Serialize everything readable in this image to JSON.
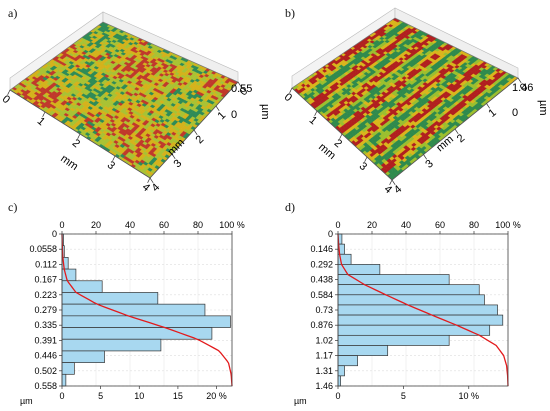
{
  "panels": {
    "a": {
      "label": "a)",
      "z_value": "0.55",
      "z_zero": "0",
      "z_unit": "µm",
      "x_ticks": [
        "0",
        "1",
        "2",
        "3",
        "4"
      ],
      "y_ticks": [
        "0",
        "1",
        "2",
        "3",
        "4"
      ],
      "x_unit": "mm",
      "y_unit": "mm",
      "colors": {
        "high": "#c0392b",
        "mid": "#d4b21c",
        "low": "#2e8b57",
        "base": "#a9c233"
      }
    },
    "b": {
      "label": "b)",
      "z_value": "1.46",
      "z_zero": "0",
      "z_unit": "µm",
      "x_ticks": [
        "0",
        "1",
        "2",
        "3",
        "4"
      ],
      "y_ticks": [
        "0",
        "1",
        "2",
        "3",
        "4"
      ],
      "x_unit": "mm",
      "y_unit": "mm",
      "colors": {
        "high": "#b11f1f",
        "mid": "#d9b51c",
        "low": "#2f8a4d",
        "base": "#9bbf2e"
      }
    },
    "c": {
      "label": "c)"
    },
    "d": {
      "label": "d)"
    }
  },
  "chart_data": [
    {
      "type": "bar",
      "panel": "c",
      "orientation": "horizontal",
      "unit_label": "µm",
      "categories": [
        "0",
        "0.0558",
        "0.112",
        "0.167",
        "0.223",
        "0.279",
        "0.335",
        "0.391",
        "0.446",
        "0.502",
        "0.558"
      ],
      "bar_values_percent": [
        0.2,
        0.3,
        0.8,
        1.8,
        5.2,
        12.4,
        18.5,
        21.8,
        19.4,
        12.8,
        5.5,
        1.6,
        0.5
      ],
      "top_axis": {
        "ticks": [
          "0",
          "20",
          "40",
          "60",
          "80",
          "100 %"
        ],
        "range": [
          0,
          100
        ]
      },
      "bottom_axis": {
        "ticks": [
          "0",
          "5",
          "10",
          "15",
          "20 %"
        ],
        "range": [
          0,
          22
        ]
      },
      "bearing_curve_color": "#e31a1c",
      "bar_color": "#a8d8f0"
    },
    {
      "type": "bar",
      "panel": "d",
      "orientation": "horizontal",
      "unit_label": "µm",
      "categories": [
        "0",
        "0.146",
        "0.292",
        "0.438",
        "0.584",
        "0.73",
        "0.876",
        "1.02",
        "1.17",
        "1.31",
        "1.46"
      ],
      "bar_values_percent": [
        0.3,
        0.5,
        1.0,
        3.2,
        8.5,
        10.8,
        11.2,
        12.2,
        12.6,
        11.6,
        8.5,
        3.8,
        1.5,
        0.5,
        0.2
      ],
      "top_axis": {
        "ticks": [
          "0",
          "20",
          "40",
          "60",
          "80",
          "100 %"
        ],
        "range": [
          0,
          100
        ]
      },
      "bottom_axis": {
        "ticks": [
          "0",
          "5",
          "10 %"
        ],
        "range": [
          0,
          13
        ]
      },
      "bearing_curve_color": "#e31a1c",
      "bar_color": "#a8d8f0"
    }
  ]
}
